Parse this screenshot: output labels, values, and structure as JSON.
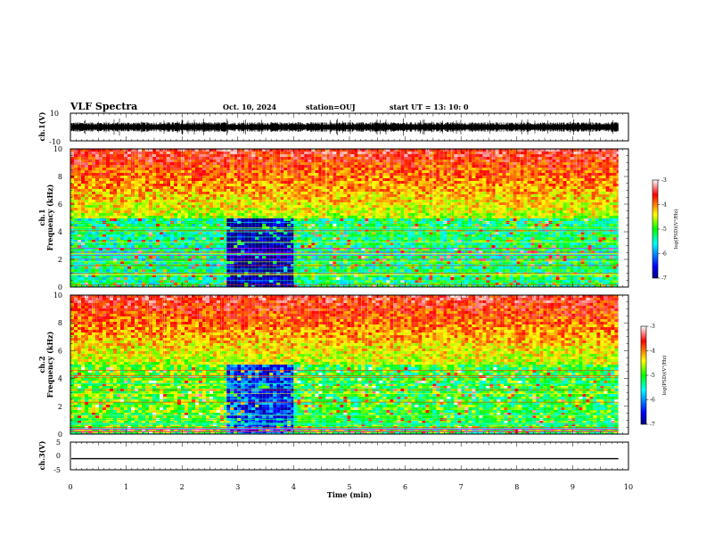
{
  "header": {
    "title": "VLF Spectra",
    "date": "Oct. 10, 2024",
    "station": "station=OUJ",
    "start_ut": "start UT =  13: 10: 0"
  },
  "chart_data": [
    {
      "type": "line",
      "name": "ch1-waveform",
      "ylabel": "ch.1(V)",
      "ylim": [
        -10,
        10
      ],
      "yticks": [
        "10",
        "-10"
      ],
      "xlim": [
        0,
        10
      ],
      "data_end_x": 9.82,
      "baseline": 0,
      "amplitude_typical": 2.5
    },
    {
      "type": "heatmap",
      "name": "ch1-spectrogram",
      "ylabel": "ch.1",
      "ylabel2": "Frequency (kHz)",
      "ylim": [
        0,
        10
      ],
      "yticks": [
        "0",
        "2",
        "4",
        "6",
        "8",
        "10"
      ],
      "xlim": [
        0,
        10
      ],
      "data_end_x": 9.82,
      "colorbar": {
        "label": "log(PSD)(V²/Hz)",
        "ticks": [
          "-3",
          "-4",
          "-5",
          "-6",
          "-7"
        ],
        "range": [
          -7,
          -3
        ]
      },
      "segments": [
        {
          "x0": 0.0,
          "x1": 2.8,
          "level_low": -5.3
        },
        {
          "x0": 2.8,
          "x1": 4.0,
          "level_low": -6.9
        },
        {
          "x0": 4.0,
          "x1": 7.55,
          "level_low": -5.2
        },
        {
          "x0": 7.55,
          "x1": 9.82,
          "level_low": -5.2
        }
      ]
    },
    {
      "type": "heatmap",
      "name": "ch2-spectrogram",
      "ylabel": "ch.2",
      "ylabel2": "Frequency (kHz)",
      "ylim": [
        0,
        10
      ],
      "yticks": [
        "0",
        "2",
        "4",
        "6",
        "8",
        "10"
      ],
      "xlim": [
        0,
        10
      ],
      "data_end_x": 9.82,
      "colorbar": {
        "label": "log(PSD)(V²/Hz)",
        "ticks": [
          "-3",
          "-4",
          "-5",
          "-6",
          "-7"
        ],
        "range": [
          -7,
          -3
        ]
      },
      "segments": [
        {
          "x0": 0.0,
          "x1": 2.8,
          "level_low": -4.8
        },
        {
          "x0": 2.8,
          "x1": 4.0,
          "level_low": -6.3
        },
        {
          "x0": 4.0,
          "x1": 9.82,
          "level_low": -5.0
        }
      ]
    },
    {
      "type": "line",
      "name": "ch3-waveform",
      "ylabel": "ch.3(V)",
      "ylim": [
        -5,
        5
      ],
      "yticks": [
        "5",
        "0",
        "-5"
      ],
      "xlim": [
        0,
        10
      ],
      "data_end_x": 9.82,
      "baseline": -1.0,
      "amplitude_typical": 0
    }
  ],
  "x_axis": {
    "label": "Time (min)",
    "ticks": [
      "0",
      "1",
      "2",
      "3",
      "4",
      "5",
      "6",
      "7",
      "8",
      "9",
      "10"
    ]
  }
}
